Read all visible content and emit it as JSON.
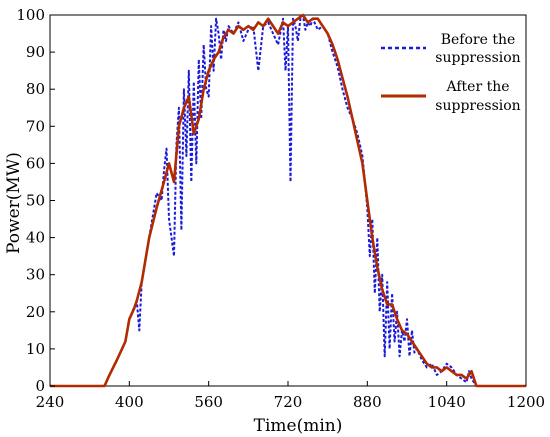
{
  "chart_data": {
    "type": "line",
    "title": "",
    "xlabel": "Time(min)",
    "ylabel": "Power(MW)",
    "xlim": [
      240,
      1200
    ],
    "ylim": [
      0,
      100
    ],
    "xticks": [
      240,
      400,
      560,
      720,
      880,
      1040,
      1200
    ],
    "yticks": [
      0,
      10,
      20,
      30,
      40,
      50,
      60,
      70,
      80,
      90,
      100
    ],
    "grid": false,
    "legend_position": "top-right",
    "series": [
      {
        "name": "Before the suppression",
        "color": "#1a1adb",
        "style": "dashed",
        "x": [
          240,
          350,
          360,
          375,
          392,
          400,
          415,
          420,
          425,
          440,
          455,
          465,
          470,
          475,
          480,
          490,
          495,
          500,
          505,
          510,
          515,
          520,
          525,
          530,
          535,
          540,
          545,
          550,
          555,
          560,
          565,
          570,
          575,
          580,
          585,
          590,
          595,
          600,
          610,
          620,
          630,
          640,
          650,
          660,
          670,
          680,
          690,
          700,
          710,
          715,
          720,
          725,
          730,
          735,
          740,
          745,
          750,
          755,
          760,
          765,
          770,
          780,
          790,
          800,
          810,
          820,
          830,
          840,
          850,
          860,
          870,
          875,
          880,
          885,
          890,
          895,
          900,
          905,
          910,
          915,
          920,
          925,
          930,
          935,
          940,
          945,
          950,
          955,
          960,
          965,
          970,
          975,
          980,
          990,
          1000,
          1010,
          1020,
          1030,
          1040,
          1050,
          1060,
          1070,
          1080,
          1085,
          1090,
          1100,
          1200
        ],
        "y": [
          0,
          0,
          3,
          7,
          12,
          18,
          23,
          15,
          28,
          40,
          52,
          50,
          58,
          64,
          45,
          35,
          65,
          75,
          42,
          80,
          62,
          85,
          55,
          82,
          60,
          88,
          72,
          92,
          80,
          78,
          97,
          85,
          99,
          95,
          88,
          96,
          93,
          97,
          95,
          98,
          93,
          96,
          97,
          85,
          97,
          98,
          95,
          92,
          99,
          85,
          97,
          55,
          99,
          97,
          93,
          99,
          100,
          96,
          98,
          97,
          99,
          96,
          97,
          95,
          90,
          86,
          80,
          75,
          72,
          68,
          62,
          55,
          48,
          35,
          45,
          25,
          40,
          20,
          30,
          8,
          28,
          10,
          25,
          12,
          20,
          8,
          15,
          12,
          18,
          8,
          15,
          9,
          10,
          7,
          5,
          6,
          3,
          4,
          6,
          5,
          3,
          2,
          1,
          4,
          2,
          0,
          0
        ]
      },
      {
        "name": "After the suppression",
        "color": "#b22a00",
        "style": "solid",
        "x": [
          240,
          350,
          360,
          375,
          392,
          400,
          410,
          415,
          425,
          440,
          455,
          470,
          480,
          490,
          500,
          510,
          520,
          530,
          540,
          550,
          560,
          570,
          580,
          590,
          600,
          610,
          620,
          630,
          640,
          650,
          660,
          670,
          680,
          690,
          700,
          710,
          720,
          730,
          740,
          750,
          760,
          770,
          780,
          790,
          800,
          810,
          820,
          830,
          840,
          850,
          860,
          870,
          880,
          890,
          900,
          910,
          920,
          930,
          940,
          950,
          960,
          970,
          980,
          990,
          1000,
          1010,
          1020,
          1030,
          1040,
          1050,
          1060,
          1070,
          1080,
          1090,
          1100,
          1200
        ],
        "y": [
          0,
          0,
          3,
          7,
          12,
          18,
          21,
          23,
          28,
          40,
          48,
          55,
          60,
          55,
          70,
          75,
          78,
          68,
          72,
          80,
          85,
          88,
          90,
          94,
          96,
          95,
          97,
          96,
          97,
          96,
          98,
          97,
          99,
          97,
          95,
          98,
          97,
          98,
          99,
          100,
          98,
          99,
          99,
          97,
          95,
          92,
          88,
          83,
          78,
          72,
          66,
          60,
          50,
          40,
          32,
          26,
          22,
          22,
          18,
          15,
          14,
          12,
          10,
          8,
          6,
          5,
          5,
          4,
          5,
          4,
          3,
          3,
          2,
          4,
          0,
          0
        ]
      }
    ]
  },
  "legend": {
    "items": [
      {
        "line1": "Before the",
        "line2": "suppression",
        "color": "#1a1adb",
        "style": "dashed"
      },
      {
        "line1": "After the",
        "line2": "suppression",
        "color": "#b22a00",
        "style": "solid"
      }
    ]
  }
}
